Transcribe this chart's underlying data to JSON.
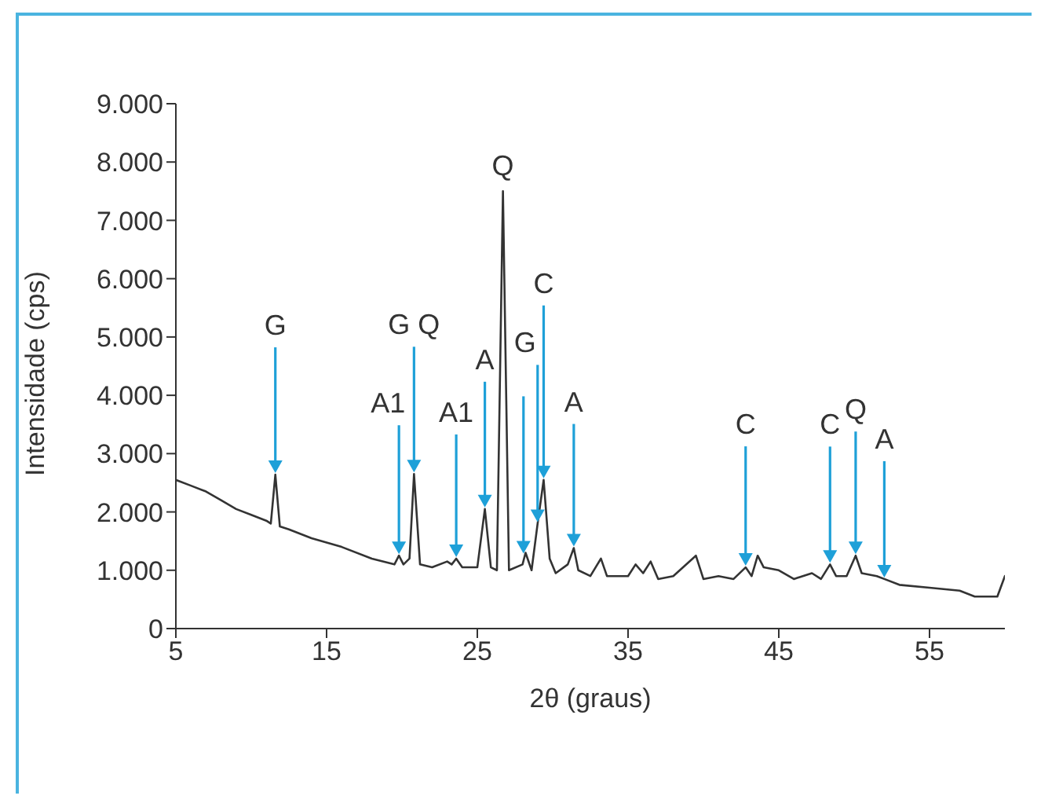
{
  "chart_data": {
    "type": "line",
    "xlabel": "2θ (graus)",
    "ylabel": "Intensidade (cps)",
    "x": [
      5,
      6,
      7,
      8,
      9,
      10,
      11,
      11.3,
      11.6,
      11.9,
      12.5,
      14,
      16,
      18,
      19.5,
      19.8,
      20.1,
      20.5,
      20.8,
      21.2,
      22,
      23,
      23.3,
      23.6,
      24,
      25,
      25.5,
      25.9,
      26.3,
      26.7,
      27.1,
      28,
      28.2,
      28.6,
      29,
      29.4,
      29.8,
      30.2,
      31,
      31.4,
      31.7,
      32.5,
      33.2,
      33.6,
      35,
      35.5,
      36,
      36.5,
      37,
      38,
      39.5,
      40,
      41,
      42,
      42.8,
      43.2,
      43.6,
      44,
      45,
      46,
      47.2,
      47.8,
      48.4,
      48.8,
      49.5,
      50.1,
      50.5,
      51.5,
      52,
      53,
      55,
      57,
      58,
      59.5,
      60
    ],
    "series": [
      {
        "color": "#333333",
        "values": [
          2550,
          2450,
          2350,
          2200,
          2050,
          1950,
          1850,
          1800,
          2640,
          1750,
          1700,
          1550,
          1400,
          1200,
          1100,
          1250,
          1100,
          1200,
          2650,
          1100,
          1050,
          1150,
          1100,
          1200,
          1050,
          1050,
          2050,
          1050,
          1000,
          7500,
          1000,
          1100,
          1300,
          1000,
          1800,
          2550,
          1200,
          950,
          1100,
          1380,
          1000,
          900,
          1200,
          900,
          900,
          1100,
          950,
          1150,
          850,
          900,
          1250,
          850,
          900,
          850,
          1050,
          900,
          1250,
          1050,
          1000,
          850,
          950,
          850,
          1100,
          900,
          900,
          1250,
          950,
          900,
          850,
          750,
          700,
          650,
          550,
          550,
          900
        ]
      }
    ],
    "xlim": [
      5,
      60
    ],
    "xticks": [
      5,
      15,
      25,
      35,
      45,
      55
    ],
    "ylim": [
      0,
      9000
    ],
    "yticks": [
      0,
      {
        "value": 1000,
        "label": "1.000"
      },
      {
        "value": 2000,
        "label": "2.000"
      },
      {
        "value": 3000,
        "label": "3.000"
      },
      {
        "value": 4000,
        "label": "4.000"
      },
      {
        "value": 5000,
        "label": "5.000"
      },
      {
        "value": 6000,
        "label": "6.000"
      },
      {
        "value": 7000,
        "label": "7.000"
      },
      {
        "value": 8000,
        "label": "8.000"
      },
      {
        "value": 9000,
        "label": "9.000"
      }
    ],
    "grid": false,
    "legend": false,
    "marker": "none",
    "line_style": "solid",
    "annotations": [
      {
        "text": "G",
        "x": 11.6,
        "y": 2640
      },
      {
        "text": "A1",
        "x": 19.8,
        "y": 1250
      },
      {
        "text": "G Q",
        "x": 20.8,
        "y": 2650
      },
      {
        "text": "A1",
        "x": 23.6,
        "y": 1200
      },
      {
        "text": "A",
        "x": 25.5,
        "y": 2050
      },
      {
        "text": "Q",
        "x": 26.7,
        "y": 7500
      },
      {
        "text": "G",
        "x": 29,
        "y": 1800
      },
      {
        "text": "C",
        "x": 29.4,
        "y": 2550
      },
      {
        "text": "A",
        "x": 31.4,
        "y": 1380
      },
      {
        "text": "C",
        "x": 42.8,
        "y": 1050
      },
      {
        "text": "C",
        "x": 48.4,
        "y": 1100
      },
      {
        "text": "Q",
        "x": 50.1,
        "y": 1250
      },
      {
        "text": "A",
        "x": 52,
        "y": 850
      }
    ]
  }
}
